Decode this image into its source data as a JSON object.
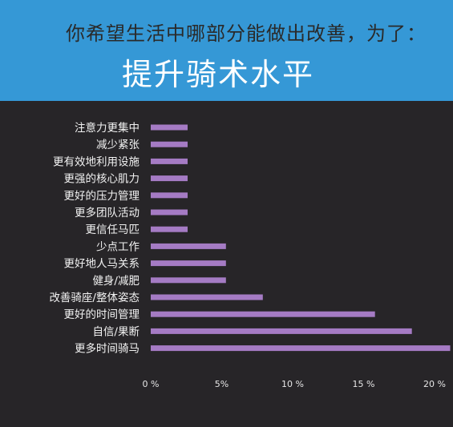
{
  "header": {
    "subtitle": "你希望生活中哪部分能做出改善，为了：",
    "title": "提升骑术水平"
  },
  "colors": {
    "banner": "#3598d6",
    "background": "#272528",
    "bar": "#a57bc4"
  },
  "chart_data": {
    "type": "bar",
    "orientation": "horizontal",
    "categories": [
      "注意力更集中",
      "减少紧张",
      "更有效地利用设施",
      "更强的核心肌力",
      "更好的压力管理",
      "更多团队活动",
      "更信任马匹",
      "少点工作",
      "更好地人马关系",
      "健身/减肥",
      "改善骑座/整体姿态",
      "更好的时间管理",
      "自信/果断",
      "更多时间骑马"
    ],
    "values": [
      2.6,
      2.6,
      2.6,
      2.6,
      2.6,
      2.6,
      2.6,
      5.3,
      5.3,
      5.3,
      7.9,
      15.8,
      18.4,
      21.1
    ],
    "xlim": [
      0,
      21.5
    ],
    "xticks": [
      0,
      5,
      10,
      15,
      20
    ],
    "xtick_labels": [
      "0 %",
      "5%",
      "10 %",
      "15 %",
      "20 %"
    ],
    "grid": false,
    "legend": "none"
  }
}
